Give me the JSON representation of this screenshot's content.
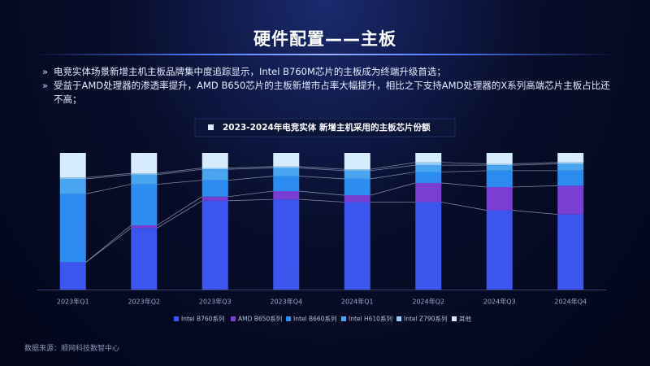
{
  "header": {
    "title": "硬件配置——主板"
  },
  "bullets": [
    "电竞实体场景新增主机主板品牌集中度追踪显示，Intel B760M芯片的主板成为终端升级首选；",
    "受益于AMD处理器的渗透率提升，AMD B650芯片的主板新增市占率大幅提升，相比之下支持AMD处理器的X系列高端芯片主板占比还不高；"
  ],
  "chart_data": {
    "type": "stacked_bar",
    "title": "2023-2024年电竞实体 新增主机采用的主板芯片份额",
    "categories": [
      "2023年Q1",
      "2023年Q2",
      "2023年Q3",
      "2023年Q4",
      "2024年Q1",
      "2024年Q2",
      "2024年Q3",
      "2024年Q4"
    ],
    "ylim": [
      0,
      100
    ],
    "series": [
      {
        "name": "Intel B760系列",
        "color": "#3b55ee",
        "values": [
          20,
          45,
          65,
          66,
          64,
          64,
          58,
          55
        ]
      },
      {
        "name": "AMD B650系列",
        "color": "#7a3fd2",
        "values": [
          0,
          2,
          3,
          6,
          5,
          14,
          17,
          21
        ]
      },
      {
        "name": "Intel B660系列",
        "color": "#2c8cef",
        "values": [
          50,
          30,
          12,
          11,
          12,
          8,
          12,
          11
        ]
      },
      {
        "name": "Intel H610系列",
        "color": "#4aa5f0",
        "values": [
          11,
          7,
          8,
          6,
          6,
          5,
          4,
          5
        ]
      },
      {
        "name": "Intel Z790系列",
        "color": "#8fcff7",
        "values": [
          1,
          1,
          1,
          1,
          1,
          2,
          1,
          1
        ]
      },
      {
        "name": "其他",
        "color": "#d6ebfb",
        "values": [
          18,
          15,
          11,
          10,
          12,
          7,
          8,
          7
        ]
      }
    ]
  },
  "source": "数据来源：顺网科技数智中心"
}
